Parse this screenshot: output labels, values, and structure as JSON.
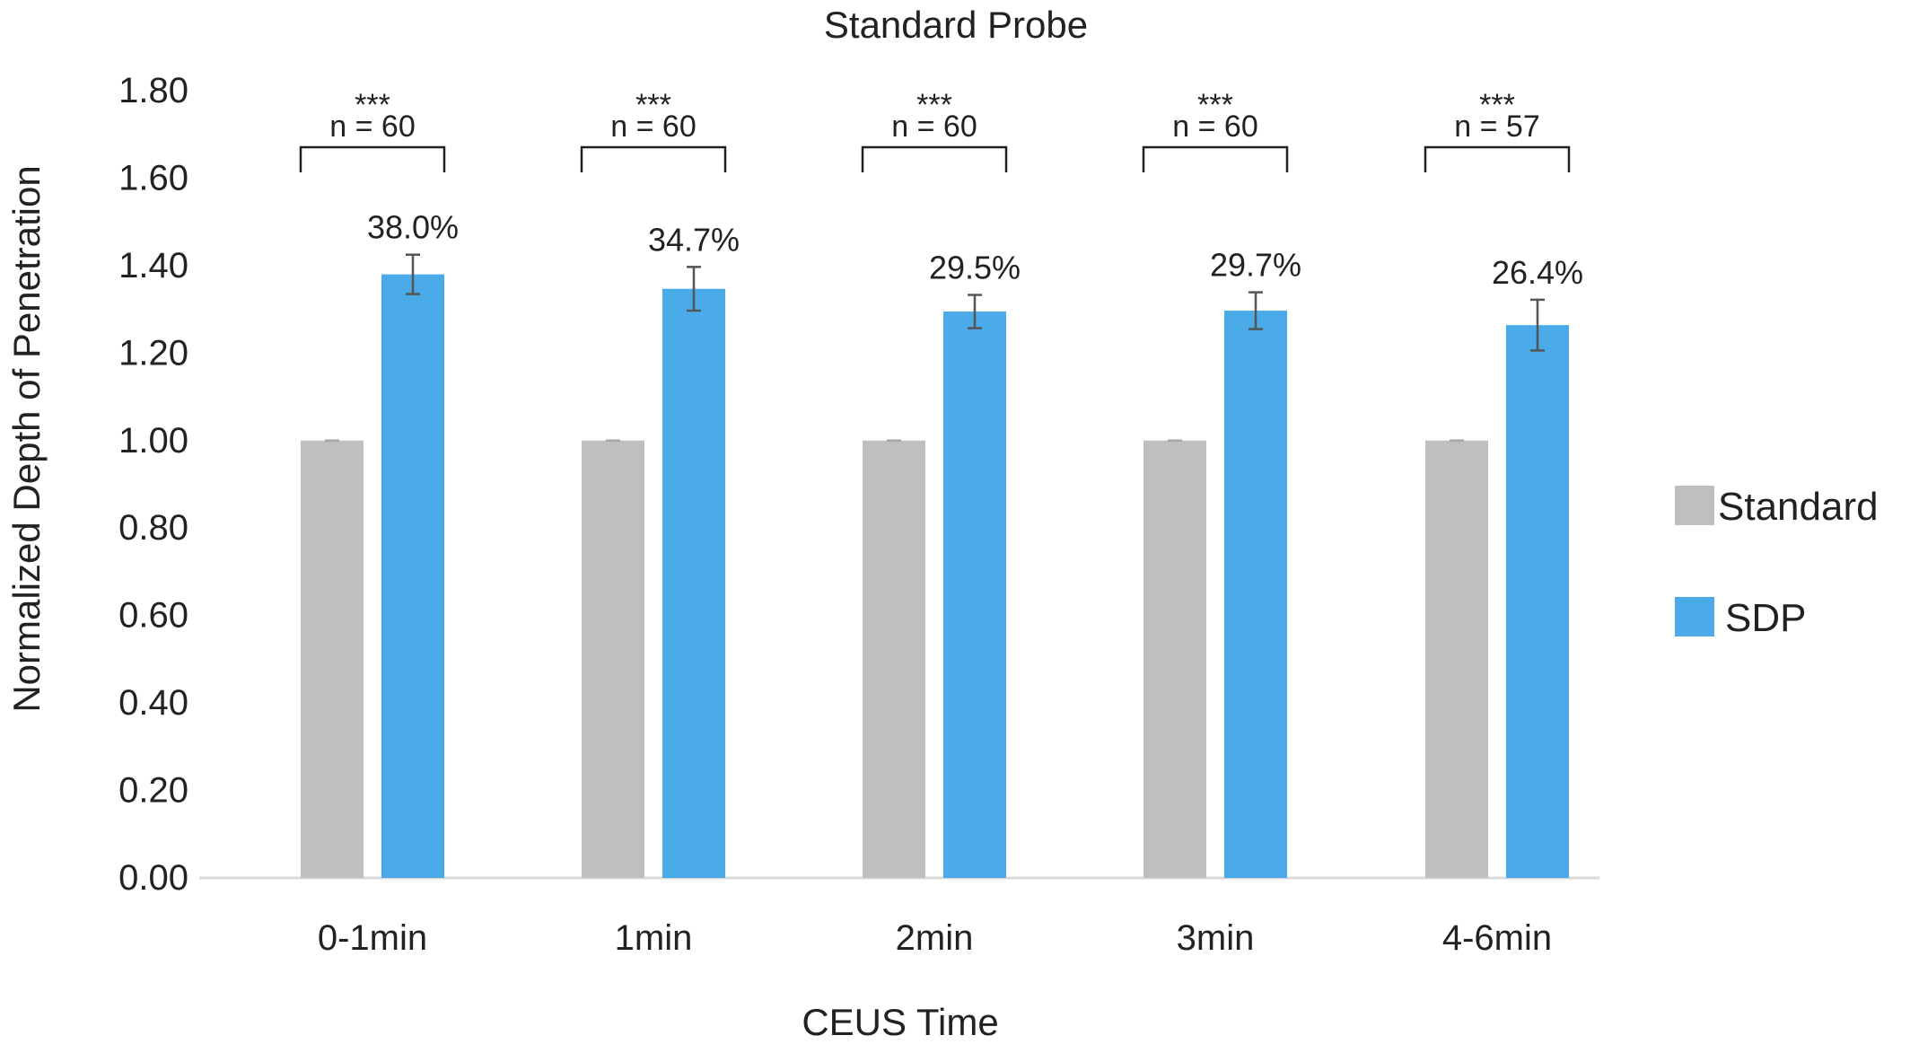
{
  "chart_data": {
    "type": "bar",
    "title": "Standard Probe",
    "xlabel": "CEUS Time",
    "ylabel": "Normalized Depth of Penetration",
    "ylim": [
      0,
      1.8
    ],
    "y_ticks": [
      "0.00",
      "0.20",
      "0.40",
      "0.60",
      "0.80",
      "1.00",
      "1.20",
      "1.40",
      "1.60",
      "1.80"
    ],
    "categories": [
      "0-1min",
      "1min",
      "2min",
      "3min",
      "4-6min"
    ],
    "series": [
      {
        "name": "Standard",
        "color": "#bfbfbf",
        "values": [
          1.0,
          1.0,
          1.0,
          1.0,
          1.0
        ],
        "errors": [
          0,
          0,
          0,
          0,
          0
        ]
      },
      {
        "name": "SDP",
        "color": "#4aabe8",
        "values": [
          1.38,
          1.347,
          1.295,
          1.297,
          1.264
        ],
        "errors": [
          0.045,
          0.05,
          0.038,
          0.042,
          0.058
        ]
      }
    ],
    "percent_labels": [
      "38.0%",
      "34.7%",
      "29.5%",
      "29.7%",
      "26.4%"
    ],
    "significance": [
      "***",
      "***",
      "***",
      "***",
      "***"
    ],
    "n_labels": [
      "n = 60",
      "n = 60",
      "n = 60",
      "n = 60",
      "n = 57"
    ],
    "grid": false,
    "legend": "right"
  }
}
